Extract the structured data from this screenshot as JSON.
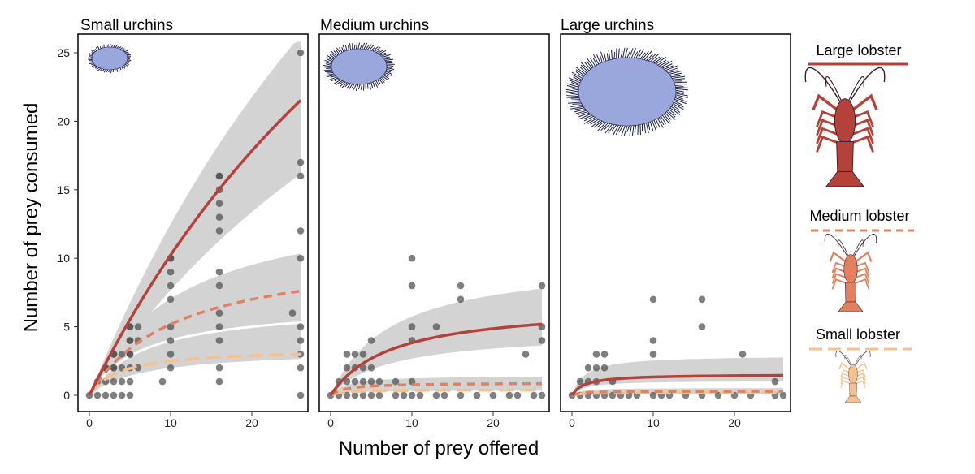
{
  "chart_data": {
    "type": "scatter",
    "xlabel": "Number of prey offered",
    "ylabel": "Number of prey consumed",
    "xlim": [
      -1,
      27
    ],
    "ylim": [
      -1,
      26
    ],
    "x_ticks": [
      0,
      10,
      20
    ],
    "y_ticks": [
      0,
      5,
      10,
      15,
      20,
      25
    ],
    "colors": {
      "large_lobster": "#b5423a",
      "medium_lobster": "#e3805f",
      "small_lobster": "#f6c18f",
      "ci_band": "#d3d3d3",
      "points": "#4d4d4d",
      "urchin": "#9aa7dd",
      "urchin_spine": "#1c1f4a"
    },
    "legend": [
      {
        "label": "Large lobster",
        "style": "solid",
        "color": "#b5423a"
      },
      {
        "label": "Medium lobster",
        "style": "dashed",
        "color": "#e3805f"
      },
      {
        "label": "Small lobster",
        "style": "longdash",
        "color": "#f6c18f"
      }
    ],
    "panels": [
      {
        "title": "Small urchins",
        "curves": [
          {
            "lobster": "Large lobster",
            "a": 1.2,
            "h": 0.0144,
            "ci": [
              0.75,
              1.22
            ]
          },
          {
            "lobster": "Medium lobster",
            "a": 1.0,
            "h": 0.093,
            "ci": [
              0.55,
              1.36
            ]
          },
          {
            "lobster": "Small lobster",
            "a": 0.9,
            "h": 0.29,
            "ci": [
              0,
              0
            ]
          }
        ],
        "extra_curve": {
          "a": 1.0,
          "h": 0.15,
          "ci": [
            0.5,
            1.55
          ]
        },
        "points": [
          [
            0,
            0
          ],
          [
            1,
            1
          ],
          [
            1,
            0
          ],
          [
            2,
            2
          ],
          [
            2,
            1
          ],
          [
            2,
            0
          ],
          [
            2,
            2
          ],
          [
            3,
            3
          ],
          [
            3,
            2
          ],
          [
            3,
            1
          ],
          [
            3,
            0
          ],
          [
            3,
            3
          ],
          [
            3,
            2
          ],
          [
            4,
            1
          ],
          [
            4,
            2
          ],
          [
            4,
            3
          ],
          [
            4,
            0
          ],
          [
            5,
            5
          ],
          [
            5,
            4
          ],
          [
            5,
            3
          ],
          [
            5,
            2
          ],
          [
            5,
            1
          ],
          [
            5,
            0
          ],
          [
            5,
            4
          ],
          [
            5,
            5
          ],
          [
            5,
            3
          ],
          [
            6,
            5
          ],
          [
            6,
            4
          ],
          [
            6,
            2
          ],
          [
            9,
            1
          ],
          [
            10,
            10
          ],
          [
            10,
            9
          ],
          [
            10,
            8
          ],
          [
            10,
            7
          ],
          [
            10,
            5
          ],
          [
            10,
            4
          ],
          [
            10,
            3
          ],
          [
            10,
            2
          ],
          [
            10,
            10
          ],
          [
            16,
            16
          ],
          [
            16,
            15
          ],
          [
            16,
            14
          ],
          [
            16,
            13
          ],
          [
            16,
            12
          ],
          [
            16,
            9
          ],
          [
            16,
            8
          ],
          [
            16,
            6
          ],
          [
            16,
            5
          ],
          [
            16,
            4
          ],
          [
            16,
            2
          ],
          [
            16,
            1
          ],
          [
            16,
            16
          ],
          [
            25,
            6
          ],
          [
            26,
            25
          ],
          [
            26,
            17
          ],
          [
            26,
            16
          ],
          [
            26,
            12
          ],
          [
            26,
            10
          ],
          [
            26,
            5
          ],
          [
            26,
            4
          ],
          [
            26,
            3
          ],
          [
            26,
            2
          ],
          [
            26,
            0
          ]
        ]
      },
      {
        "title": "Medium urchins",
        "curves": [
          {
            "lobster": "Large lobster",
            "a": 0.9,
            "h": 0.15,
            "ci": [
              0.7,
              1.5
            ]
          },
          {
            "lobster": "Medium lobster",
            "a": 0.5,
            "h": 1.1,
            "ci": [
              0.4,
              1.6
            ]
          },
          {
            "lobster": "Small lobster",
            "a": 0.3,
            "h": 2.5,
            "ci": [
              0,
              0
            ]
          }
        ],
        "points": [
          [
            0,
            0
          ],
          [
            1,
            1
          ],
          [
            1,
            0
          ],
          [
            2,
            2
          ],
          [
            2,
            1
          ],
          [
            2,
            0
          ],
          [
            2,
            3
          ],
          [
            3,
            3
          ],
          [
            3,
            2
          ],
          [
            3,
            1
          ],
          [
            3,
            0
          ],
          [
            4,
            2
          ],
          [
            4,
            1
          ],
          [
            4,
            0
          ],
          [
            4,
            3
          ],
          [
            5,
            4
          ],
          [
            5,
            2
          ],
          [
            5,
            1
          ],
          [
            5,
            0
          ],
          [
            6,
            1
          ],
          [
            6,
            0
          ],
          [
            8,
            1
          ],
          [
            8,
            0
          ],
          [
            9,
            0
          ],
          [
            10,
            5
          ],
          [
            10,
            4
          ],
          [
            10,
            1
          ],
          [
            10,
            0
          ],
          [
            10,
            10
          ],
          [
            10,
            8
          ],
          [
            11,
            0
          ],
          [
            13,
            5
          ],
          [
            13,
            0
          ],
          [
            14,
            0
          ],
          [
            16,
            8
          ],
          [
            16,
            7
          ],
          [
            16,
            0
          ],
          [
            18,
            0
          ],
          [
            20,
            0
          ],
          [
            22,
            0
          ],
          [
            23,
            0
          ],
          [
            24,
            3
          ],
          [
            25,
            0
          ],
          [
            26,
            8
          ],
          [
            26,
            5
          ],
          [
            26,
            4
          ],
          [
            26,
            0
          ]
        ]
      },
      {
        "title": "Large urchins",
        "curves": [
          {
            "lobster": "Large lobster",
            "a": 1.0,
            "h": 0.65,
            "ci": [
              0.7,
              1.9
            ]
          },
          {
            "lobster": "Medium lobster",
            "a": 0.3,
            "h": 3.3,
            "ci": [
              0.3,
              1.8
            ]
          },
          {
            "lobster": "Small lobster",
            "a": 0.2,
            "h": 5.0,
            "ci": [
              0,
              0
            ]
          }
        ],
        "points": [
          [
            0,
            0
          ],
          [
            1,
            1
          ],
          [
            1,
            0
          ],
          [
            2,
            1
          ],
          [
            2,
            2
          ],
          [
            2,
            0
          ],
          [
            3,
            3
          ],
          [
            3,
            2
          ],
          [
            3,
            1
          ],
          [
            3,
            0
          ],
          [
            4,
            3
          ],
          [
            4,
            2
          ],
          [
            4,
            0
          ],
          [
            5,
            1
          ],
          [
            5,
            0
          ],
          [
            6,
            0
          ],
          [
            7,
            0
          ],
          [
            8,
            0
          ],
          [
            10,
            7
          ],
          [
            10,
            4
          ],
          [
            10,
            3
          ],
          [
            10,
            0
          ],
          [
            11,
            0
          ],
          [
            12,
            0
          ],
          [
            14,
            0
          ],
          [
            16,
            7
          ],
          [
            16,
            5
          ],
          [
            16,
            0
          ],
          [
            18,
            0
          ],
          [
            20,
            0
          ],
          [
            21,
            3
          ],
          [
            22,
            0
          ],
          [
            25,
            1
          ],
          [
            25,
            0
          ],
          [
            26,
            0
          ]
        ]
      }
    ]
  }
}
